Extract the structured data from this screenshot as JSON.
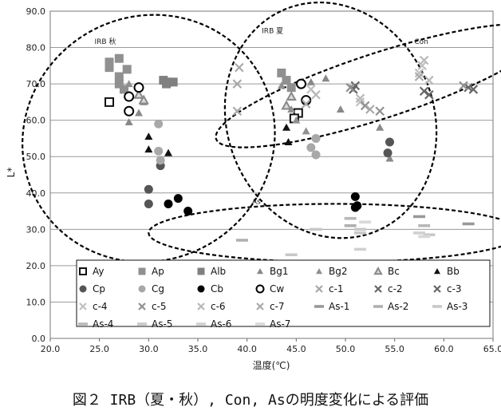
{
  "caption": "図２ IRB（夏・秋）, Con, Asの明度変化による評価",
  "chart_data": {
    "type": "scatter",
    "xlabel": "温度(℃)",
    "ylabel": "L*",
    "xlim": [
      20,
      65
    ],
    "ylim": [
      0,
      90
    ],
    "xticks": [
      "20.0",
      "25.0",
      "30.0",
      "35.0",
      "40.0",
      "45.0",
      "50.0",
      "55.0",
      "60.0",
      "65.0"
    ],
    "yticks": [
      "0.0",
      "10.0",
      "20.0",
      "30.0",
      "40.0",
      "50.0",
      "60.0",
      "70.0",
      "80.0",
      "90.0"
    ],
    "grid": "horizontal",
    "legend_position": "bottom-inside",
    "group_labels": [
      {
        "text": "IRB 秋",
        "x": 24.5,
        "y": 81
      },
      {
        "text": "IRB 夏",
        "x": 41.5,
        "y": 84
      },
      {
        "text": "Con",
        "x": 57,
        "y": 81
      },
      {
        "text": "As",
        "x": 40.5,
        "y": 37
      }
    ],
    "ellipses": [
      {
        "name": "IRB 秋",
        "cx": 30.0,
        "cy": 55.0,
        "rx": 13.0,
        "ry": 33.5,
        "rot": -32
      },
      {
        "name": "IRB 夏",
        "cx": 48.5,
        "cy": 60.0,
        "rx": 10.5,
        "ry": 33.0,
        "rot": -22
      },
      {
        "name": "Con",
        "cx": 53.5,
        "cy": 69.5,
        "rx": 17.5,
        "ry": 9.0,
        "rot": -18
      },
      {
        "name": "As",
        "cx": 49.0,
        "cy": 29.0,
        "rx": 19.0,
        "ry": 8.0,
        "rot": 0
      }
    ],
    "series": [
      {
        "name": "Ay",
        "marker": "square-open",
        "color": "#111111",
        "points": [
          [
            26.0,
            65.0
          ],
          [
            45.2,
            62.0
          ],
          [
            44.8,
            60.5
          ]
        ]
      },
      {
        "name": "Ap",
        "marker": "square",
        "color": "#909090",
        "points": [
          [
            26.0,
            76.0
          ],
          [
            26.0,
            74.5
          ],
          [
            27.0,
            77.0
          ],
          [
            27.0,
            72.0
          ],
          [
            27.0,
            70.0
          ],
          [
            27.5,
            68.5
          ],
          [
            27.8,
            74.0
          ],
          [
            43.5,
            73.0
          ],
          [
            44.0,
            71.0
          ],
          [
            44.5,
            69.0
          ]
        ]
      },
      {
        "name": "Alb",
        "marker": "square",
        "color": "#808080",
        "points": [
          [
            31.5,
            71.0
          ],
          [
            32.0,
            70.5
          ],
          [
            32.5,
            70.5
          ],
          [
            31.8,
            70.0
          ]
        ]
      },
      {
        "name": "Bg1",
        "marker": "triangle",
        "color": "#888888",
        "points": [
          [
            28.0,
            59.5
          ],
          [
            29.0,
            62.0
          ],
          [
            46.5,
            70.5
          ],
          [
            48.0,
            71.5
          ],
          [
            49.5,
            63.0
          ],
          [
            53.5,
            58.0
          ],
          [
            54.5,
            49.5
          ]
        ]
      },
      {
        "name": "Bg2",
        "marker": "triangle",
        "color": "#909090",
        "points": [
          [
            28.0,
            70.0
          ],
          [
            29.5,
            65.0
          ],
          [
            43.5,
            69.5
          ],
          [
            44.5,
            63.0
          ],
          [
            45.0,
            60.0
          ],
          [
            46.0,
            57.0
          ]
        ]
      },
      {
        "name": "Bc",
        "marker": "triangle-open",
        "color": "#888888",
        "points": [
          [
            29.0,
            67.0
          ],
          [
            29.5,
            65.5
          ],
          [
            44.0,
            64.0
          ],
          [
            44.5,
            66.5
          ]
        ]
      },
      {
        "name": "Bb",
        "marker": "triangle",
        "color": "#111111",
        "points": [
          [
            30.0,
            55.5
          ],
          [
            30.0,
            52.0
          ],
          [
            32.0,
            51.0
          ],
          [
            44.0,
            58.0
          ],
          [
            44.2,
            54.0
          ]
        ]
      },
      {
        "name": "Cp",
        "marker": "circle",
        "color": "#555555",
        "points": [
          [
            30.0,
            41.0
          ],
          [
            30.0,
            37.0
          ],
          [
            31.2,
            47.5
          ],
          [
            54.5,
            54.0
          ],
          [
            54.3,
            51.0
          ]
        ]
      },
      {
        "name": "Cg",
        "marker": "circle",
        "color": "#a8a8a8",
        "points": [
          [
            31.0,
            59.0
          ],
          [
            31.0,
            51.5
          ],
          [
            31.2,
            49.0
          ],
          [
            46.5,
            52.5
          ],
          [
            47.0,
            55.0
          ],
          [
            47.0,
            50.5
          ]
        ]
      },
      {
        "name": "Cb",
        "marker": "circle",
        "color": "#000000",
        "points": [
          [
            32.0,
            37.0
          ],
          [
            33.0,
            38.5
          ],
          [
            34.0,
            35.0
          ],
          [
            51.0,
            39.0
          ],
          [
            51.2,
            36.5
          ],
          [
            51.0,
            36.0
          ]
        ]
      },
      {
        "name": "Cw",
        "marker": "circle-open",
        "color": "#000000",
        "points": [
          [
            28.0,
            66.5
          ],
          [
            28.0,
            62.5
          ],
          [
            29.0,
            69.0
          ],
          [
            45.5,
            70.0
          ],
          [
            46.0,
            65.5
          ]
        ]
      },
      {
        "name": "c-1",
        "marker": "x",
        "color": "#a8a8a8",
        "points": [
          [
            39.2,
            74.5
          ],
          [
            39.0,
            70.0
          ],
          [
            39.0,
            62.5
          ]
        ]
      },
      {
        "name": "c-2",
        "marker": "x",
        "color": "#666666",
        "points": [
          [
            51.0,
            69.5
          ],
          [
            58.5,
            67.0
          ],
          [
            62.5,
            69.0
          ]
        ]
      },
      {
        "name": "c-3",
        "marker": "x",
        "color": "#666666",
        "points": [
          [
            50.8,
            68.5
          ],
          [
            58.0,
            68.0
          ],
          [
            63.0,
            68.5
          ]
        ]
      },
      {
        "name": "c-4",
        "marker": "x",
        "color": "#c0c0c0",
        "points": [
          [
            46.5,
            68.5
          ],
          [
            51.5,
            65.0
          ],
          [
            57.8,
            75.0
          ],
          [
            57.5,
            73.0
          ]
        ]
      },
      {
        "name": "c-5",
        "marker": "x",
        "color": "#909090",
        "points": [
          [
            50.5,
            69.0
          ],
          [
            52.0,
            64.0
          ],
          [
            53.5,
            62.5
          ],
          [
            62.0,
            69.5
          ]
        ]
      },
      {
        "name": "c-6",
        "marker": "x",
        "color": "#b8b8b8",
        "points": [
          [
            47.0,
            67.0
          ],
          [
            51.5,
            66.0
          ],
          [
            58.0,
            76.5
          ],
          [
            58.5,
            71.0
          ]
        ]
      },
      {
        "name": "c-7",
        "marker": "x",
        "color": "#aaaaaa",
        "points": [
          [
            46.0,
            64.5
          ],
          [
            52.5,
            63.0
          ],
          [
            57.5,
            72.0
          ]
        ]
      },
      {
        "name": "As-1",
        "marker": "dash",
        "color": "#999999",
        "points": [
          [
            57.5,
            33.5
          ],
          [
            62.5,
            31.5
          ]
        ]
      },
      {
        "name": "As-2",
        "marker": "dash",
        "color": "#b0b0b0",
        "points": [
          [
            39.5,
            27.0
          ],
          [
            50.5,
            31.0
          ]
        ]
      },
      {
        "name": "As-3",
        "marker": "dash",
        "color": "#c8c8c8",
        "points": [
          [
            44.5,
            23.0
          ],
          [
            51.5,
            30.0
          ]
        ]
      },
      {
        "name": "As-4",
        "marker": "dash",
        "color": "#b8b8b8",
        "points": [
          [
            50.5,
            33.0
          ],
          [
            58.0,
            31.0
          ]
        ]
      },
      {
        "name": "As-5",
        "marker": "dash",
        "color": "#c8c8c8",
        "points": [
          [
            47.0,
            30.0
          ],
          [
            51.5,
            29.0
          ],
          [
            58.5,
            28.5
          ]
        ]
      },
      {
        "name": "As-6",
        "marker": "dash",
        "color": "#d0d0d0",
        "points": [
          [
            51.5,
            24.5
          ],
          [
            57.5,
            29.0
          ]
        ]
      },
      {
        "name": "As-7",
        "marker": "dash",
        "color": "#d8d8d8",
        "points": [
          [
            58.0,
            28.0
          ],
          [
            52.0,
            32.0
          ]
        ]
      }
    ]
  }
}
